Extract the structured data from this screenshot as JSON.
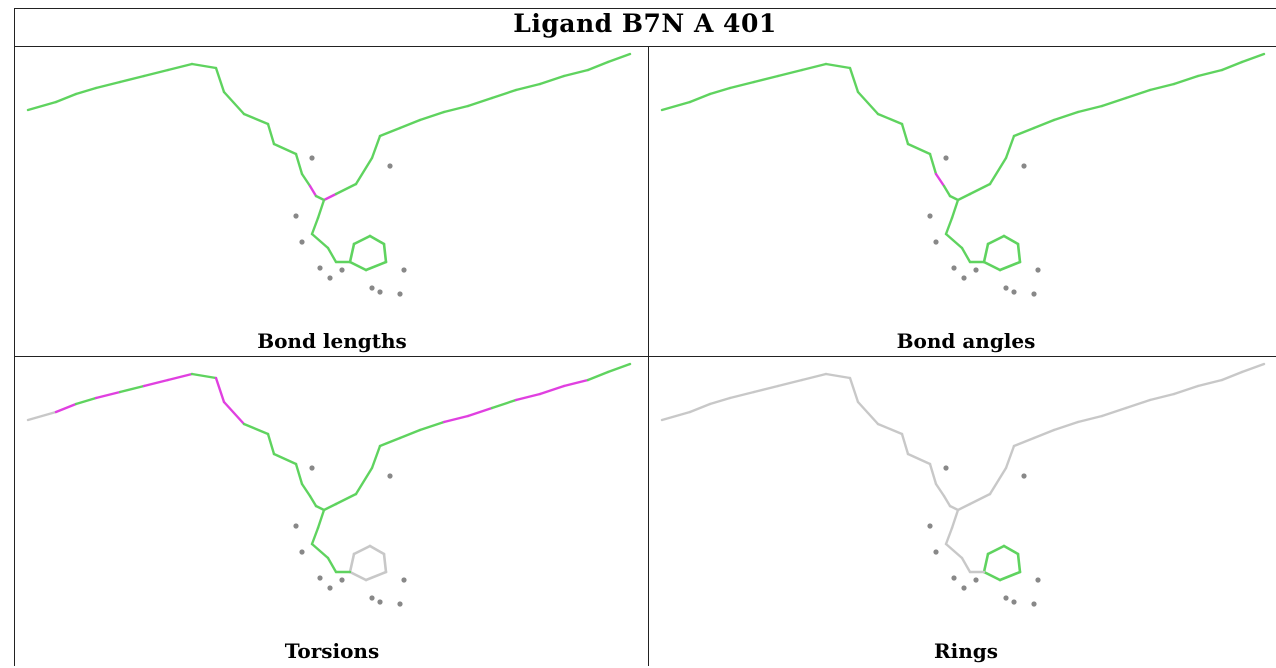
{
  "title": "Ligand B7N A 401",
  "panels": [
    {
      "id": "bond-lengths",
      "caption": "Bond lengths"
    },
    {
      "id": "bond-angles",
      "caption": "Bond angles"
    },
    {
      "id": "torsions",
      "caption": "Torsions"
    },
    {
      "id": "rings",
      "caption": "Rings"
    }
  ],
  "colors": {
    "ok": "#5fd35f",
    "outlier": "#e040e0",
    "neutral": "#c8c8c8",
    "hydrogen": "#888888",
    "grid": "#222222"
  }
}
